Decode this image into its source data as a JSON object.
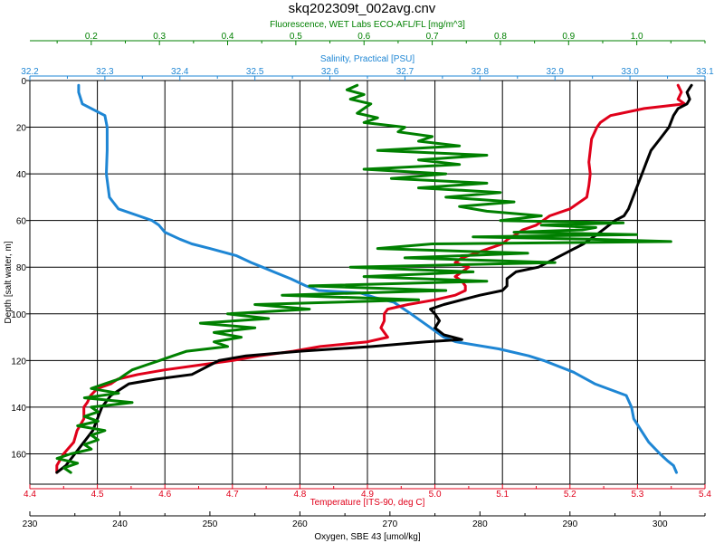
{
  "chart_data": {
    "type": "line",
    "title": "skq202309t_002avg.cnv",
    "grid": true,
    "axes": {
      "depth": {
        "label": "Depth [salt water, m]",
        "range": [
          0,
          173
        ],
        "ticks": [
          0,
          20,
          40,
          60,
          80,
          100,
          120,
          140,
          160
        ],
        "color": "#000000",
        "orientation": "inverted"
      },
      "fluorescence": {
        "label": "Fluorescence, WET Labs ECO-AFL/FL [mg/m^3]",
        "range": [
          0.11,
          1.1
        ],
        "ticks": [
          "0.2",
          "0.3",
          "0.4",
          "0.5",
          "0.6",
          "0.7",
          "0.8",
          "0.9",
          "1.0"
        ],
        "color": "#008000",
        "side": "top-outer"
      },
      "salinity": {
        "label": "Salinity, Practical [PSU]",
        "range": [
          32.2,
          33.1
        ],
        "ticks": [
          "32.2",
          "32.3",
          "32.4",
          "32.5",
          "32.6",
          "32.7",
          "32.8",
          "32.9",
          "33.0",
          "33.1"
        ],
        "color": "#1e86d4",
        "side": "top-inner"
      },
      "temperature": {
        "label": "Temperature [ITS-90, deg C]",
        "range": [
          4.4,
          5.4
        ],
        "ticks": [
          "4.4",
          "4.5",
          "4.6",
          "4.7",
          "4.8",
          "4.9",
          "5.0",
          "5.1",
          "5.2",
          "5.3",
          "5.4"
        ],
        "color": "#e0001a",
        "side": "bottom-inner"
      },
      "oxygen": {
        "label": "Oxygen, SBE 43 [umol/kg]",
        "range": [
          230,
          305
        ],
        "ticks": [
          "230",
          "240",
          "250",
          "260",
          "270",
          "280",
          "290",
          "300"
        ],
        "color": "#000000",
        "side": "bottom-outer"
      }
    },
    "series": [
      {
        "name": "Salinity",
        "axis": "salinity",
        "color": "#1e86d4",
        "depth": [
          2,
          5,
          10,
          15,
          20,
          30,
          40,
          50,
          55,
          58,
          60,
          62,
          65,
          68,
          70,
          72,
          75,
          78,
          80,
          82,
          85,
          88,
          90,
          91,
          93,
          95,
          100,
          105,
          110,
          112,
          115,
          118,
          120,
          125,
          130,
          135,
          140,
          145,
          150,
          155,
          160,
          163,
          165,
          168
        ],
        "values": [
          32.265,
          32.265,
          32.27,
          32.3,
          32.303,
          32.303,
          32.302,
          32.306,
          32.318,
          32.345,
          32.363,
          32.372,
          32.38,
          32.4,
          32.416,
          32.44,
          32.475,
          32.495,
          32.51,
          32.525,
          32.548,
          32.568,
          32.585,
          32.64,
          32.66,
          32.685,
          32.708,
          32.73,
          32.752,
          32.768,
          32.825,
          32.865,
          32.885,
          32.925,
          32.953,
          32.995,
          33.002,
          33.005,
          33.015,
          33.025,
          33.04,
          33.05,
          33.058,
          33.062
        ]
      },
      {
        "name": "Temperature",
        "axis": "temperature",
        "color": "#e0001a",
        "depth": [
          2,
          5,
          8,
          10,
          12,
          15,
          18,
          20,
          25,
          30,
          35,
          40,
          45,
          50,
          55,
          58,
          60,
          62,
          64,
          66,
          68,
          70,
          72,
          74,
          76,
          78,
          80,
          82,
          84,
          86,
          88,
          90,
          92,
          94,
          96,
          98,
          100,
          103,
          106,
          108,
          110,
          112,
          114,
          116,
          118,
          120,
          122,
          124,
          126,
          128,
          130,
          132,
          135,
          138,
          140,
          145,
          150,
          155,
          160,
          165,
          168
        ],
        "values": [
          5.36,
          5.365,
          5.36,
          5.37,
          5.31,
          5.26,
          5.245,
          5.24,
          5.232,
          5.23,
          5.228,
          5.23,
          5.228,
          5.225,
          5.2,
          5.17,
          5.16,
          5.15,
          5.13,
          5.12,
          5.108,
          5.1,
          5.08,
          5.06,
          5.04,
          5.03,
          5.05,
          5.04,
          5.03,
          5.04,
          5.045,
          5.045,
          5.03,
          5.0,
          4.96,
          4.93,
          4.925,
          4.925,
          4.92,
          4.925,
          4.93,
          4.9,
          4.83,
          4.79,
          4.74,
          4.7,
          4.65,
          4.6,
          4.56,
          4.53,
          4.52,
          4.5,
          4.49,
          4.485,
          4.48,
          4.48,
          4.47,
          4.465,
          4.45,
          4.44,
          4.44
        ]
      },
      {
        "name": "Oxygen",
        "axis": "oxygen",
        "color": "#000000",
        "depth": [
          2,
          5,
          8,
          10,
          12,
          15,
          20,
          25,
          30,
          35,
          40,
          45,
          50,
          55,
          58,
          60,
          63,
          66,
          70,
          73,
          76,
          80,
          82,
          85,
          88,
          90,
          92,
          94,
          96,
          98,
          100,
          103,
          106,
          109,
          111,
          112,
          114,
          116,
          118,
          120,
          122,
          124,
          126,
          128,
          130,
          135,
          140,
          145,
          150,
          155,
          160,
          165,
          168
        ],
        "values": [
          303.5,
          303.0,
          303.3,
          303.0,
          302.0,
          301.5,
          301.0,
          300.0,
          299.0,
          298.5,
          298.0,
          297.5,
          297.0,
          296.5,
          296.0,
          295.0,
          294.0,
          293.0,
          291.5,
          290.0,
          288.5,
          286.5,
          284.0,
          283.0,
          283.0,
          282.5,
          280.0,
          278.0,
          276.0,
          274.5,
          275.0,
          275.5,
          275.0,
          276.0,
          278.0,
          274.0,
          268.0,
          260.0,
          254.0,
          251.0,
          250.0,
          249.0,
          248.0,
          244.0,
          241.0,
          239.0,
          238.0,
          237.5,
          237.0,
          236.0,
          235.0,
          234.0,
          233.0
        ]
      },
      {
        "name": "Fluorescence",
        "axis": "fluorescence",
        "color": "#008000",
        "depth": [
          2,
          4,
          6,
          8,
          10,
          12,
          14,
          16,
          18,
          20,
          22,
          24,
          26,
          28,
          30,
          32,
          34,
          36,
          38,
          40,
          42,
          44,
          46,
          48,
          50,
          52,
          54,
          56,
          58,
          60,
          61,
          62,
          63,
          64,
          65,
          66,
          67,
          68,
          69,
          70,
          72,
          74,
          76,
          78,
          80,
          82,
          84,
          86,
          88,
          90,
          92,
          94,
          96,
          98,
          100,
          102,
          104,
          106,
          108,
          110,
          112,
          114,
          116,
          118,
          120,
          122,
          124,
          126,
          128,
          130,
          132,
          134,
          136,
          138,
          140,
          142,
          144,
          146,
          148,
          150,
          152,
          154,
          156,
          158,
          160,
          162,
          164,
          166,
          168
        ],
        "values": [
          0.59,
          0.575,
          0.6,
          0.58,
          0.61,
          0.6,
          0.59,
          0.62,
          0.6,
          0.66,
          0.65,
          0.7,
          0.68,
          0.74,
          0.62,
          0.78,
          0.68,
          0.74,
          0.6,
          0.72,
          0.64,
          0.78,
          0.68,
          0.8,
          0.72,
          0.82,
          0.74,
          0.78,
          0.86,
          0.8,
          0.98,
          0.86,
          0.94,
          0.92,
          0.82,
          1.0,
          0.76,
          0.93,
          1.05,
          0.7,
          0.62,
          0.84,
          0.66,
          0.88,
          0.58,
          0.76,
          0.6,
          0.78,
          0.52,
          0.72,
          0.48,
          0.68,
          0.44,
          0.52,
          0.4,
          0.46,
          0.36,
          0.44,
          0.38,
          0.42,
          0.38,
          0.4,
          0.34,
          0.32,
          0.3,
          0.28,
          0.26,
          0.25,
          0.24,
          0.22,
          0.2,
          0.24,
          0.19,
          0.26,
          0.2,
          0.21,
          0.19,
          0.21,
          0.18,
          0.22,
          0.2,
          0.21,
          0.19,
          0.2,
          0.17,
          0.15,
          0.18,
          0.16,
          0.17
        ]
      }
    ]
  }
}
